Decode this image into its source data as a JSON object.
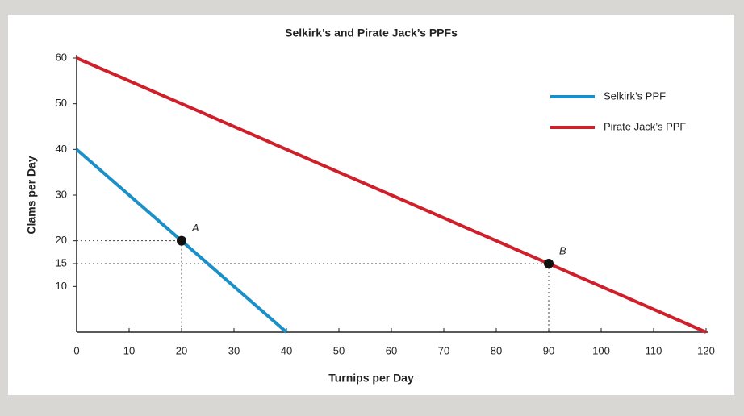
{
  "chart_data": {
    "type": "line",
    "title": "Selkirk’s and Pirate Jack’s PPFs",
    "x_label": "Turnips per Day",
    "y_label": "Clams per Day",
    "series": [
      {
        "name": "Selkirk’s PPF",
        "color": "#1b90c8",
        "x": [
          0,
          40
        ],
        "values": [
          40,
          0
        ]
      },
      {
        "name": "Pirate Jack’s PPF",
        "color": "#cf1f2b",
        "x": [
          0,
          120
        ],
        "values": [
          60,
          0
        ]
      }
    ],
    "points": [
      {
        "label": "A",
        "x": 20,
        "y": 20
      },
      {
        "label": "B",
        "x": 90,
        "y": 15
      }
    ],
    "xlim": [
      0,
      120
    ],
    "ylim": [
      0,
      60
    ],
    "xticks": [
      0,
      10,
      20,
      30,
      40,
      50,
      60,
      70,
      80,
      90,
      100,
      110,
      120
    ],
    "yticks": [
      10,
      15,
      20,
      30,
      40,
      50,
      60
    ],
    "legend": "top-right"
  }
}
